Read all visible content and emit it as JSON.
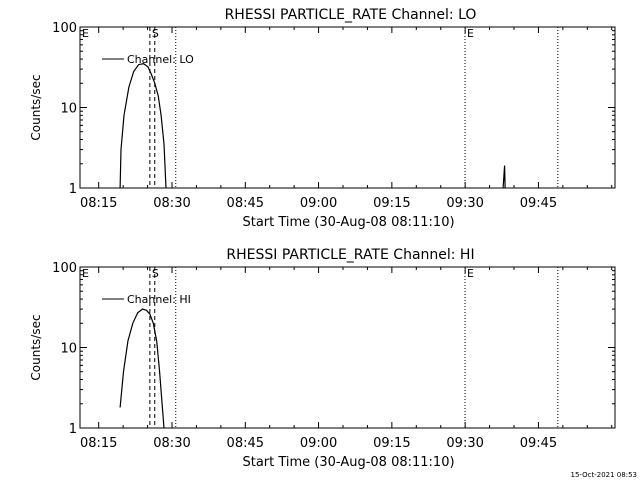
{
  "footer_timestamp": "15-Oct-2021 08:53",
  "chart_data": [
    {
      "type": "line",
      "title": "RHESSI PARTICLE_RATE Channel: LO",
      "xlabel": "Start Time (30-Aug-08 08:11:10)",
      "ylabel": "Counts/sec",
      "yscale": "log",
      "xlim_minutes_after_08_11_10": [
        0,
        109.5
      ],
      "ylim": [
        1,
        100
      ],
      "x_ticks": [
        {
          "label": "08:15",
          "t": 3.83
        },
        {
          "label": "08:30",
          "t": 18.83
        },
        {
          "label": "08:45",
          "t": 33.83
        },
        {
          "label": "09:00",
          "t": 48.83
        },
        {
          "label": "09:15",
          "t": 63.83
        },
        {
          "label": "09:30",
          "t": 78.83
        },
        {
          "label": "09:45",
          "t": 93.83
        }
      ],
      "y_ticks": [
        {
          "label": "1",
          "v": 1
        },
        {
          "label": "10",
          "v": 10
        },
        {
          "label": "100",
          "v": 100
        }
      ],
      "legend": {
        "position": "top-left",
        "entries": [
          "Channel: LO"
        ]
      },
      "markers": [
        {
          "label": "E",
          "t": 0,
          "style": "dotted"
        },
        {
          "label": "S",
          "t": 14.3,
          "style": "dashed"
        },
        {
          "label": "",
          "t": 15.3,
          "style": "dashed"
        },
        {
          "label": "",
          "t": 19.6,
          "style": "dotted"
        },
        {
          "label": "E",
          "t": 78.8,
          "style": "dotted"
        },
        {
          "label": "",
          "t": 97.8,
          "style": "dotted"
        }
      ],
      "series": [
        {
          "x": [
            8.2,
            8.4,
            9.0,
            10.0,
            11.0,
            12.0,
            13.0,
            13.9,
            14.6,
            15.3,
            16.0,
            16.6,
            17.2,
            17.6
          ],
          "y": [
            1.0,
            3.0,
            8.0,
            18.0,
            28.0,
            34.0,
            35.0,
            32.0,
            26.0,
            20.0,
            14.0,
            8.0,
            3.5,
            1.0
          ]
        },
        {
          "x": [
            86.6,
            86.9,
            87.0
          ],
          "y": [
            1.0,
            1.9,
            1.0
          ]
        }
      ]
    },
    {
      "type": "line",
      "title": "RHESSI PARTICLE_RATE Channel: HI",
      "xlabel": "Start Time (30-Aug-08 08:11:10)",
      "ylabel": "Counts/sec",
      "yscale": "log",
      "xlim_minutes_after_08_11_10": [
        0,
        109.5
      ],
      "ylim": [
        1,
        100
      ],
      "x_ticks": [
        {
          "label": "08:15",
          "t": 3.83
        },
        {
          "label": "08:30",
          "t": 18.83
        },
        {
          "label": "08:45",
          "t": 33.83
        },
        {
          "label": "09:00",
          "t": 48.83
        },
        {
          "label": "09:15",
          "t": 63.83
        },
        {
          "label": "09:30",
          "t": 78.83
        },
        {
          "label": "09:45",
          "t": 93.83
        }
      ],
      "y_ticks": [
        {
          "label": "1",
          "v": 1
        },
        {
          "label": "10",
          "v": 10
        },
        {
          "label": "100",
          "v": 100
        }
      ],
      "legend": {
        "position": "top-left",
        "entries": [
          "Channel: HI"
        ]
      },
      "markers": [
        {
          "label": "E",
          "t": 0,
          "style": "dotted"
        },
        {
          "label": "S",
          "t": 14.3,
          "style": "dashed"
        },
        {
          "label": "",
          "t": 15.3,
          "style": "dashed"
        },
        {
          "label": "",
          "t": 19.6,
          "style": "dotted"
        },
        {
          "label": "E",
          "t": 78.8,
          "style": "dotted"
        },
        {
          "label": "",
          "t": 97.8,
          "style": "dotted"
        }
      ],
      "series": [
        {
          "x": [
            8.2,
            8.9,
            9.8,
            10.8,
            11.8,
            12.8,
            13.6,
            14.3,
            15.0,
            15.7,
            16.3,
            16.8,
            17.2
          ],
          "y": [
            1.8,
            5.0,
            12.0,
            20.0,
            27.0,
            30.0,
            29.0,
            26.0,
            20.0,
            12.0,
            5.0,
            2.0,
            1.0
          ]
        }
      ]
    }
  ]
}
